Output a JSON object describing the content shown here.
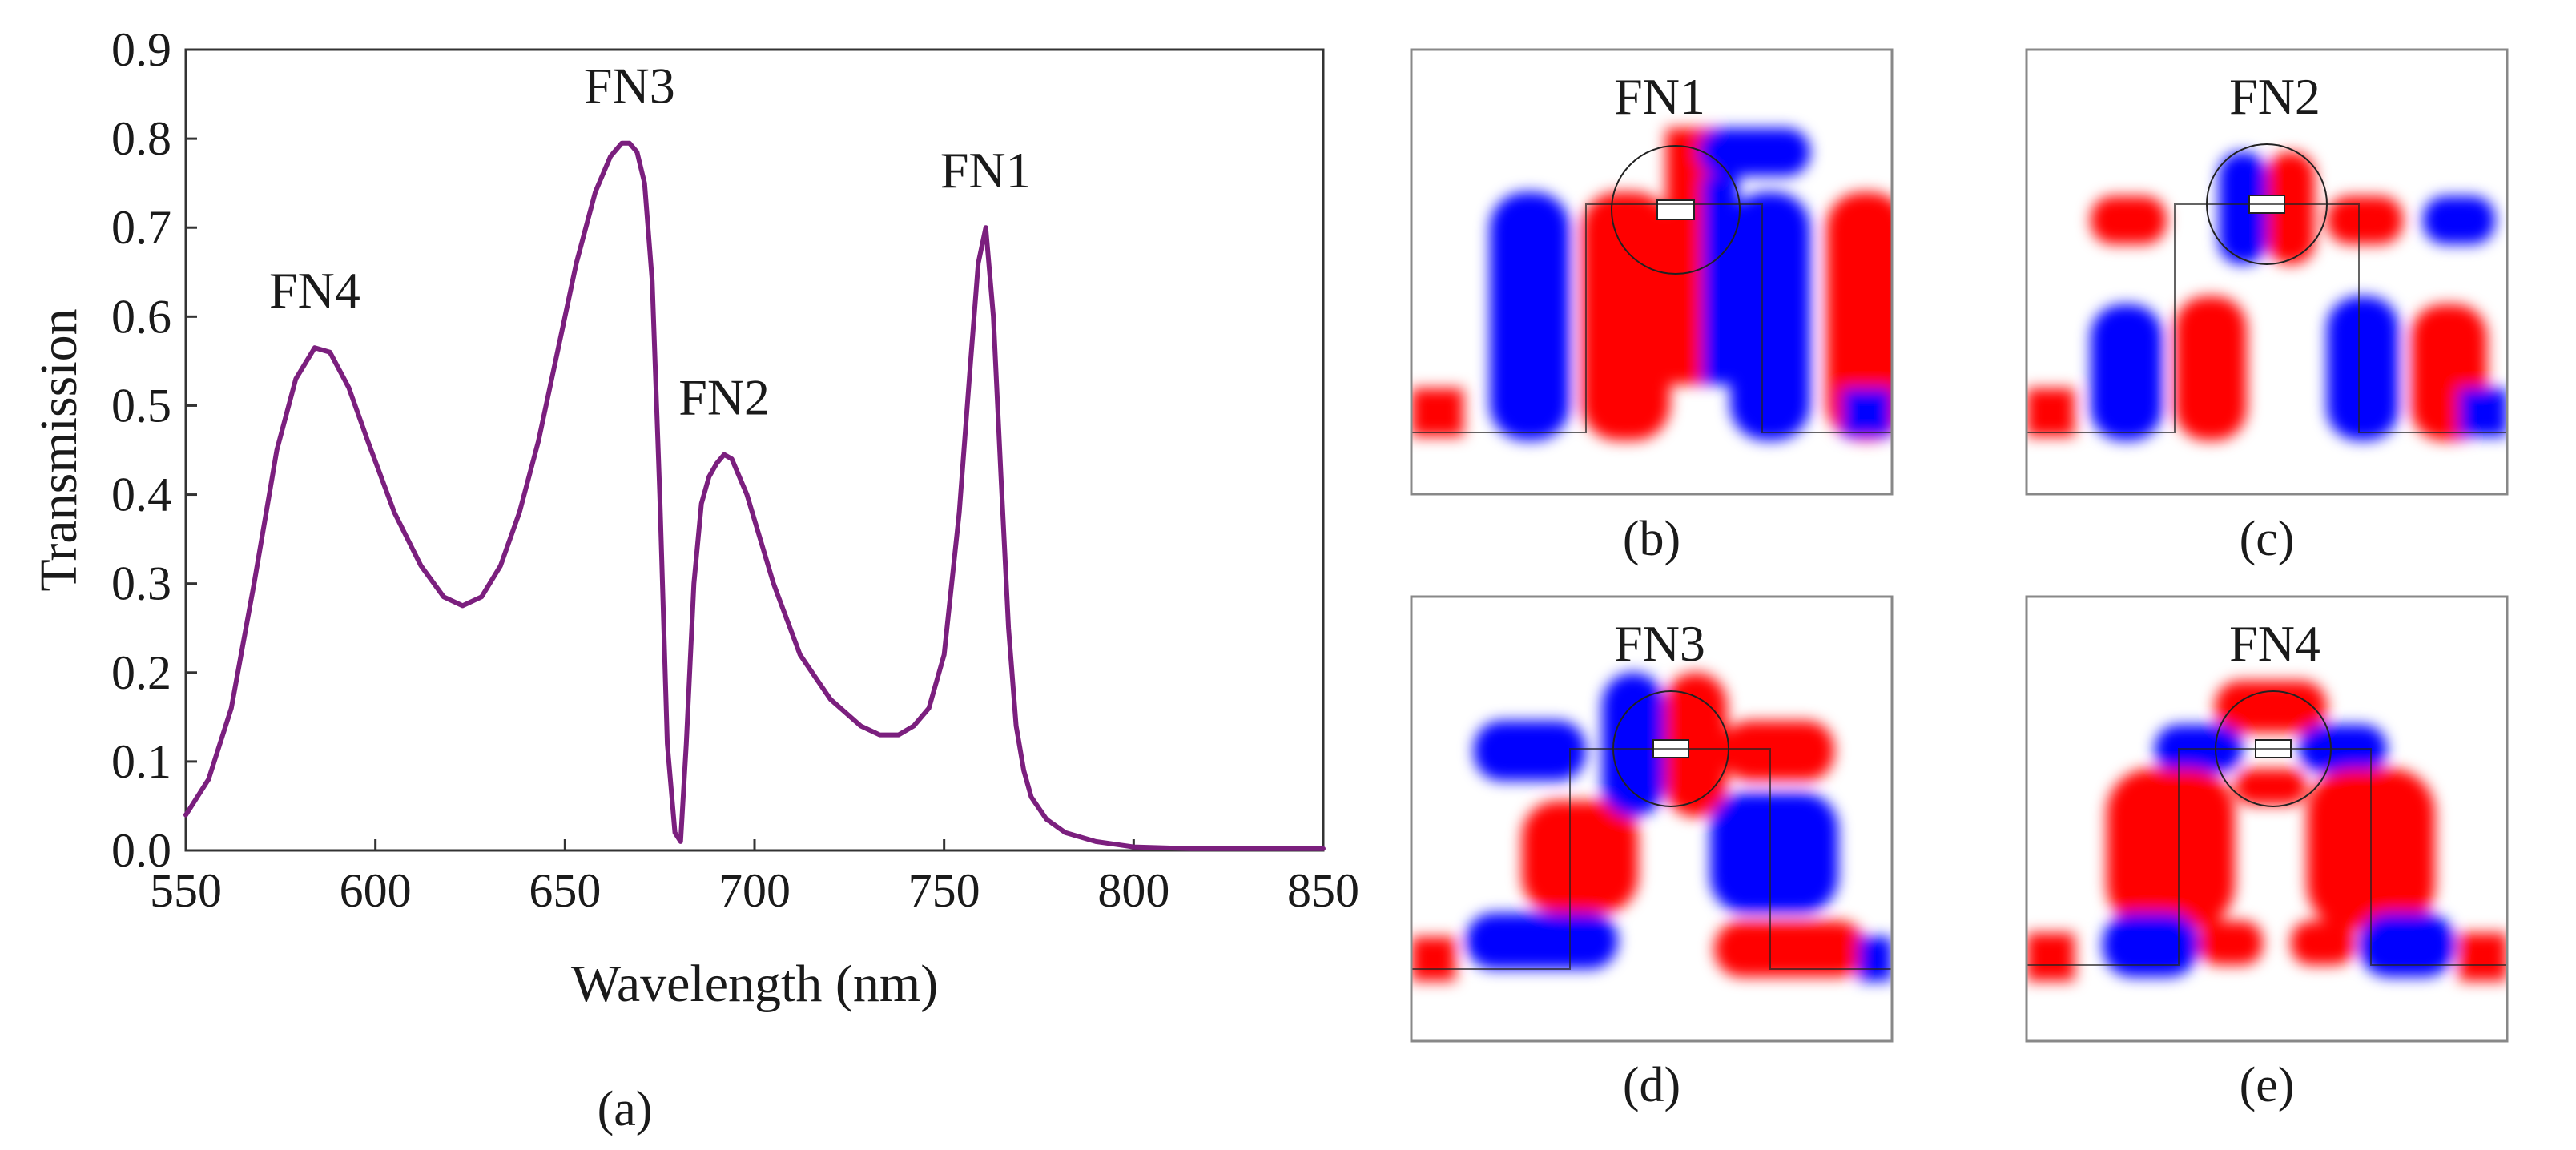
{
  "chart_data": {
    "type": "line",
    "title": "",
    "xlabel": "Wavelength (nm)",
    "ylabel": "Transmission",
    "xlim": [
      550,
      850
    ],
    "ylim": [
      0,
      0.9
    ],
    "xticks": [
      "550",
      "600",
      "650",
      "700",
      "750",
      "800",
      "850"
    ],
    "yticks": [
      "0.0",
      "0.1",
      "0.2",
      "0.3",
      "0.4",
      "0.5",
      "0.6",
      "0.7",
      "0.8",
      "0.9"
    ],
    "grid": false,
    "line_color": "#7b1f7e",
    "series": [
      {
        "name": "Transmission",
        "x": [
          550,
          556,
          562,
          568,
          574,
          579,
          584,
          588,
          593,
          598,
          605,
          612,
          618,
          623,
          628,
          633,
          638,
          643,
          648,
          653,
          658,
          662,
          665,
          667,
          669,
          671,
          673,
          675,
          677,
          679,
          680.5,
          682,
          684,
          686,
          688,
          690,
          692,
          694,
          698,
          705,
          712,
          720,
          728,
          733,
          738,
          742,
          746,
          750,
          754,
          757,
          759,
          761,
          763,
          765,
          767,
          769,
          771,
          773,
          777,
          782,
          790,
          800,
          815,
          830,
          850
        ],
        "y": [
          0.04,
          0.08,
          0.16,
          0.3,
          0.45,
          0.53,
          0.565,
          0.56,
          0.52,
          0.46,
          0.38,
          0.32,
          0.285,
          0.275,
          0.285,
          0.32,
          0.38,
          0.46,
          0.56,
          0.66,
          0.74,
          0.78,
          0.795,
          0.795,
          0.785,
          0.75,
          0.64,
          0.4,
          0.12,
          0.02,
          0.01,
          0.12,
          0.3,
          0.39,
          0.42,
          0.435,
          0.445,
          0.44,
          0.4,
          0.3,
          0.22,
          0.17,
          0.14,
          0.13,
          0.13,
          0.14,
          0.16,
          0.22,
          0.38,
          0.55,
          0.66,
          0.7,
          0.6,
          0.42,
          0.25,
          0.14,
          0.09,
          0.06,
          0.035,
          0.02,
          0.01,
          0.004,
          0.002,
          0.002,
          0.002
        ]
      }
    ],
    "annotations": [
      {
        "text": "FN4",
        "x": 584,
        "y": 0.565
      },
      {
        "text": "FN3",
        "x": 667,
        "y": 0.795
      },
      {
        "text": "FN2",
        "x": 692,
        "y": 0.445
      },
      {
        "text": "FN1",
        "x": 761,
        "y": 0.7
      }
    ],
    "caption": "(a)"
  },
  "field_maps": [
    {
      "id": "b",
      "label": "FN1",
      "caption": "(b)"
    },
    {
      "id": "c",
      "label": "FN2",
      "caption": "(c)"
    },
    {
      "id": "d",
      "label": "FN3",
      "caption": "(d)"
    },
    {
      "id": "e",
      "label": "FN4",
      "caption": "(e)"
    }
  ],
  "colors": {
    "positive": "#ff0000",
    "negative": "#0000ff",
    "frame": "#555555",
    "background": "#ffffff"
  }
}
